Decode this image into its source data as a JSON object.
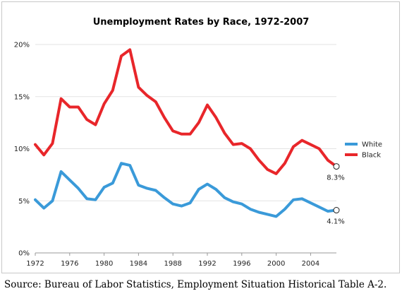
{
  "chart_data": {
    "type": "line",
    "title": "Unemployment Rates by Race, 1972-2007",
    "xlabel": "",
    "ylabel": "",
    "x": [
      1972,
      1973,
      1974,
      1975,
      1976,
      1977,
      1978,
      1979,
      1980,
      1981,
      1982,
      1983,
      1984,
      1985,
      1986,
      1987,
      1988,
      1989,
      1990,
      1991,
      1992,
      1993,
      1994,
      1995,
      1996,
      1997,
      1998,
      1999,
      2000,
      2001,
      2002,
      2003,
      2004,
      2005,
      2006,
      2007
    ],
    "xlim": [
      1972,
      2007
    ],
    "ylim": [
      0,
      20
    ],
    "x_ticks": [
      "1972",
      "1976",
      "1980",
      "1984",
      "1988",
      "1992",
      "1996",
      "2000",
      "2004"
    ],
    "y_ticks": [
      "0%",
      "5%",
      "10%",
      "15%",
      "20%"
    ],
    "grid": "horizontal",
    "legend_position": "right",
    "series": [
      {
        "name": "White",
        "color": "#3a9ad9",
        "values": [
          5.1,
          4.3,
          5.0,
          7.8,
          7.0,
          6.2,
          5.2,
          5.1,
          6.3,
          6.7,
          8.6,
          8.4,
          6.5,
          6.2,
          6.0,
          5.3,
          4.7,
          4.5,
          4.8,
          6.1,
          6.6,
          6.1,
          5.3,
          4.9,
          4.7,
          4.2,
          3.9,
          3.7,
          3.5,
          4.2,
          5.1,
          5.2,
          4.8,
          4.4,
          4.0,
          4.1
        ],
        "end_label": "4.1%"
      },
      {
        "name": "Black",
        "color": "#e8262a",
        "values": [
          10.4,
          9.4,
          10.5,
          14.8,
          14.0,
          14.0,
          12.8,
          12.3,
          14.3,
          15.6,
          18.9,
          19.5,
          15.9,
          15.1,
          14.5,
          13.0,
          11.7,
          11.4,
          11.4,
          12.5,
          14.2,
          13.0,
          11.5,
          10.4,
          10.5,
          10.0,
          8.9,
          8.0,
          7.6,
          8.6,
          10.2,
          10.8,
          10.4,
          10.0,
          8.9,
          8.3
        ],
        "end_label": "8.3%"
      }
    ],
    "source": "Source: Bureau of Labor Statistics, Employment Situation Historical Table A-2."
  }
}
